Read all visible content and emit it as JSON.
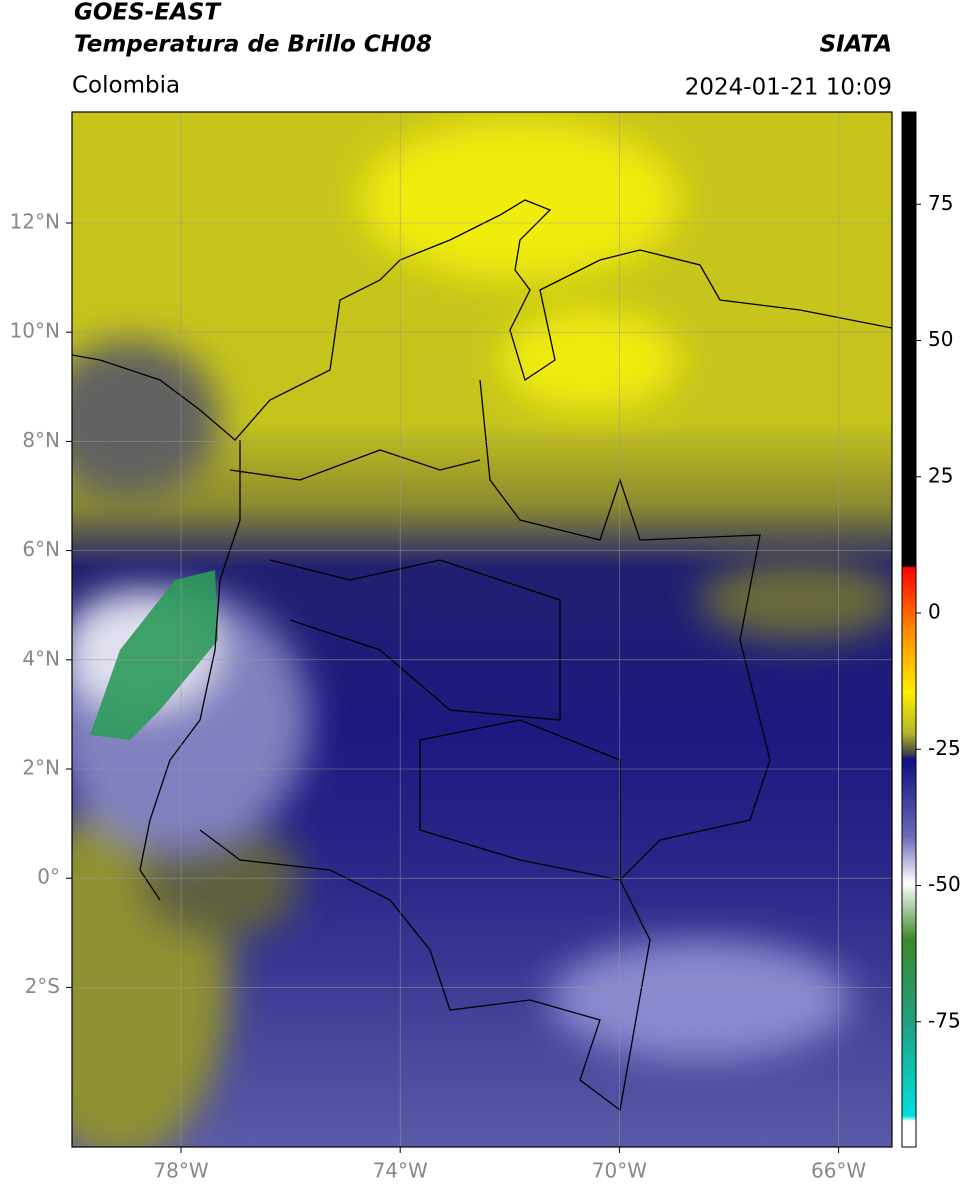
{
  "header": {
    "satellite": "GOES-EAST",
    "product": "Temperatura de Brillo CH08",
    "region": "Colombia",
    "organization": "SIATA",
    "datetime": "2024-01-21 10:09"
  },
  "map": {
    "lat_ticks": [
      "12°N",
      "10°N",
      "8°N",
      "6°N",
      "4°N",
      "2°N",
      "0°",
      "2°S"
    ],
    "lon_ticks": [
      "78°W",
      "74°W",
      "70°W",
      "66°W"
    ]
  },
  "colorbar": {
    "ticks": [
      75,
      50,
      25,
      0,
      -25,
      -50,
      -75
    ]
  }
}
